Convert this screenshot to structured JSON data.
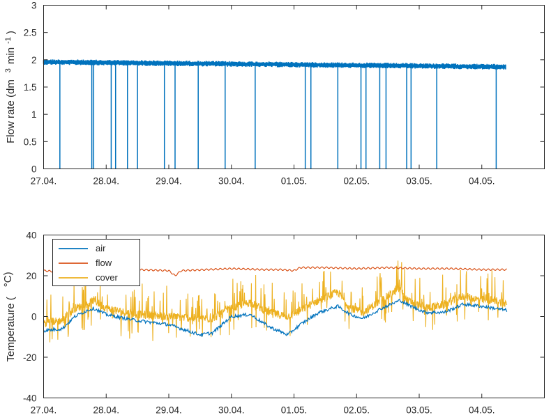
{
  "chart_data": [
    {
      "type": "line",
      "ylabel": "Flow rate (dm",
      "ylabel_unit": "3",
      "ylabel_unit_b": "min",
      "ylabel_unit_c": "-1",
      "ylabel_end": ")",
      "xlim": [
        0,
        8
      ],
      "ylim": [
        0,
        3
      ],
      "xticks": [
        0,
        1,
        2,
        3,
        4,
        5,
        6,
        7,
        8
      ],
      "xtick_labels": [
        "27.04.",
        "28.04.",
        "29.04.",
        "30.04.",
        "01.05.",
        "02.05.",
        "03.05.",
        "04.05.",
        ""
      ],
      "yticks": [
        0,
        0.5,
        1,
        1.5,
        2,
        2.5,
        3
      ],
      "ytick_labels": [
        "0",
        "0.5",
        "1",
        "1.5",
        "2",
        "2.5",
        "3"
      ],
      "grid": false,
      "series": [
        {
          "color": "#0072bd",
          "x_start": 0,
          "x_end": 7.38,
          "y_start": 1.96,
          "y_end": 1.87,
          "drop_x": [
            0.26,
            0.77,
            0.8,
            1.08,
            1.15,
            1.34,
            1.5,
            1.93,
            2.1,
            2.47,
            2.9,
            3.38,
            4.18,
            4.27,
            4.7,
            5.07,
            5.15,
            5.37,
            5.47,
            5.8,
            5.87,
            6.28,
            7.23
          ]
        }
      ]
    },
    {
      "type": "line",
      "ylabel": "Temperature (",
      "ylabel_unit": "°C)",
      "xlim": [
        0,
        8
      ],
      "ylim": [
        -40,
        40
      ],
      "xticks": [
        0,
        1,
        2,
        3,
        4,
        5,
        6,
        7,
        8
      ],
      "xtick_labels": [
        "27.04.",
        "28.04.",
        "29.04.",
        "30.04.",
        "01.05.",
        "02.05.",
        "03.05.",
        "04.05.",
        ""
      ],
      "yticks": [
        -40,
        -20,
        0,
        20,
        40
      ],
      "ytick_labels": [
        "-40",
        "-20",
        "0",
        "20",
        "40"
      ],
      "grid": false,
      "legend_position": "top-left",
      "series": [
        {
          "name": "air",
          "color": "#0072bd",
          "points": [
            [
              0,
              -7
            ],
            [
              0.3,
              -6
            ],
            [
              0.5,
              0
            ],
            [
              0.7,
              3
            ],
            [
              0.8,
              4
            ],
            [
              1.0,
              1
            ],
            [
              1.3,
              -1
            ],
            [
              1.5,
              -2
            ],
            [
              2.0,
              -4
            ],
            [
              2.5,
              -9
            ],
            [
              2.7,
              -8
            ],
            [
              3.0,
              0
            ],
            [
              3.3,
              1
            ],
            [
              3.6,
              -5
            ],
            [
              3.9,
              -9
            ],
            [
              4.1,
              -4
            ],
            [
              4.4,
              2
            ],
            [
              4.7,
              5
            ],
            [
              4.9,
              1
            ],
            [
              5.1,
              -1
            ],
            [
              5.4,
              4
            ],
            [
              5.7,
              8
            ],
            [
              5.8,
              6
            ],
            [
              6.1,
              2
            ],
            [
              6.4,
              2
            ],
            [
              6.7,
              6
            ],
            [
              7.0,
              5
            ],
            [
              7.2,
              4
            ],
            [
              7.4,
              3
            ]
          ]
        },
        {
          "name": "flow",
          "color": "#d95319",
          "points": [
            [
              0,
              22.5
            ],
            [
              0.2,
              22
            ],
            [
              0.5,
              23
            ],
            [
              1.0,
              23.5
            ],
            [
              1.5,
              23
            ],
            [
              2.0,
              22.5
            ],
            [
              2.1,
              20
            ],
            [
              2.2,
              22.5
            ],
            [
              2.6,
              23
            ],
            [
              3.0,
              23.5
            ],
            [
              3.5,
              23
            ],
            [
              3.8,
              23
            ],
            [
              4.0,
              22.5
            ],
            [
              4.1,
              24
            ],
            [
              4.5,
              24
            ],
            [
              5.0,
              23.5
            ],
            [
              5.5,
              24
            ],
            [
              6.0,
              23.5
            ],
            [
              6.5,
              23.5
            ],
            [
              7.0,
              23
            ],
            [
              7.4,
              23
            ]
          ]
        },
        {
          "name": "cover",
          "color": "#edb120",
          "points": [
            [
              0,
              -3
            ],
            [
              0.3,
              -2
            ],
            [
              0.5,
              4
            ],
            [
              0.7,
              6
            ],
            [
              0.8,
              8
            ],
            [
              1.0,
              4
            ],
            [
              1.3,
              2
            ],
            [
              1.5,
              1
            ],
            [
              2.0,
              0
            ],
            [
              2.5,
              -1
            ],
            [
              2.7,
              -1
            ],
            [
              3.0,
              4
            ],
            [
              3.3,
              7
            ],
            [
              3.6,
              2
            ],
            [
              3.9,
              0
            ],
            [
              4.1,
              3
            ],
            [
              4.4,
              8
            ],
            [
              4.7,
              12
            ],
            [
              4.9,
              4
            ],
            [
              5.1,
              2
            ],
            [
              5.4,
              8
            ],
            [
              5.7,
              14
            ],
            [
              5.8,
              8
            ],
            [
              6.1,
              4
            ],
            [
              6.4,
              6
            ],
            [
              6.7,
              10
            ],
            [
              7.0,
              8
            ],
            [
              7.2,
              8
            ],
            [
              7.4,
              6
            ]
          ]
        }
      ]
    }
  ]
}
